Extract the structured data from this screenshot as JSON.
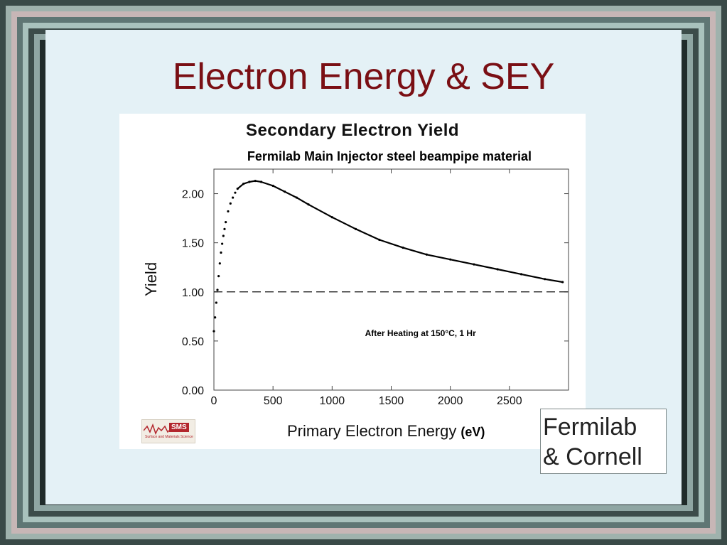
{
  "slide": {
    "title": "Electron Energy & SEY",
    "credit_line1": "Fermilab",
    "credit_line2": "& Cornell"
  },
  "logo": {
    "label": "SMS",
    "sub": "Surface and Materials Science"
  },
  "chart_data": {
    "type": "scatter",
    "title": "Secondary Electron Yield",
    "subtitle": "Fermilab Main Injector steel beampipe material",
    "xlabel": "Primary Electron Energy",
    "xunit": "(eV)",
    "ylabel": "Yield",
    "xlim": [
      0,
      3000
    ],
    "ylim": [
      0,
      2.25
    ],
    "xticks": [
      0,
      500,
      1000,
      1500,
      2000,
      2500
    ],
    "yticks": [
      0.0,
      0.5,
      1.0,
      1.5,
      2.0
    ],
    "ytick_labels": [
      "0.00",
      "0.50",
      "1.00",
      "1.50",
      "2.00"
    ],
    "reference_line": {
      "y": 1.0,
      "style": "dashed"
    },
    "annotation": {
      "text": "After Heating at 150°C, 1 Hr",
      "x": 1200,
      "y": 0.58
    },
    "series": [
      {
        "points_x": [
          0,
          10,
          20,
          30,
          40,
          50,
          60,
          70,
          80,
          90,
          100,
          120,
          140,
          160,
          180,
          200,
          250,
          300,
          350,
          400,
          500,
          600,
          700,
          800,
          1000,
          1200,
          1400,
          1600,
          1800,
          2000,
          2200,
          2400,
          2600,
          2800,
          2950
        ],
        "points_y": [
          0.6,
          0.74,
          0.89,
          1.02,
          1.16,
          1.29,
          1.4,
          1.49,
          1.57,
          1.64,
          1.71,
          1.82,
          1.9,
          1.96,
          2.01,
          2.05,
          2.1,
          2.12,
          2.13,
          2.12,
          2.08,
          2.02,
          1.96,
          1.89,
          1.76,
          1.64,
          1.53,
          1.45,
          1.38,
          1.33,
          1.28,
          1.23,
          1.18,
          1.13,
          1.1
        ]
      }
    ]
  }
}
